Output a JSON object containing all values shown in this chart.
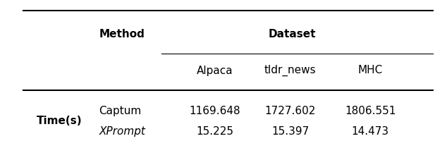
{
  "dataset_cols": [
    "Alpaca",
    "tldr_news",
    "MHC"
  ],
  "row_label": "Time(s)",
  "methods": [
    "Captum",
    "XPrompt"
  ],
  "values": {
    "Captum": [
      "1169.648",
      "1727.602",
      "1806.551"
    ],
    "XPrompt": [
      "15.225",
      "15.397",
      "14.473"
    ]
  },
  "bg_color": "#ffffff",
  "text_color": "#000000",
  "font_size": 11
}
